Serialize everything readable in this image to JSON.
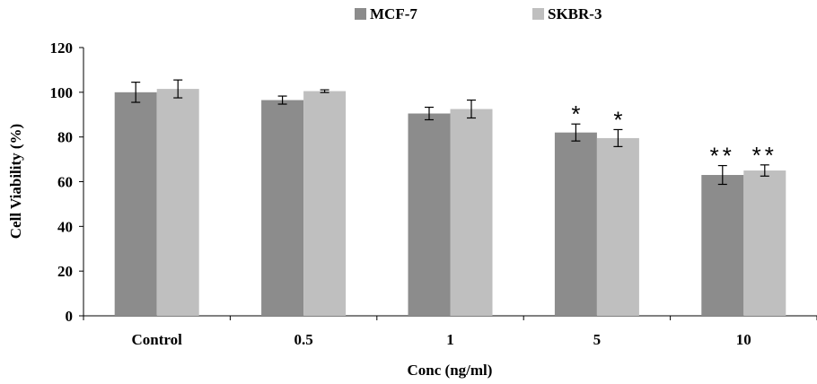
{
  "chart_data": {
    "type": "bar",
    "title": "",
    "xlabel": "Conc (ng/ml)",
    "ylabel": "Cell Viability (%)",
    "ylim": [
      0,
      120
    ],
    "yticks": [
      0,
      20,
      40,
      60,
      80,
      100,
      120
    ],
    "grid": false,
    "legend_position": "top-center",
    "categories": [
      "Control",
      "0.5",
      "1",
      "5",
      "10"
    ],
    "series": [
      {
        "name": "MCF-7",
        "color": "#8c8c8c",
        "values": [
          100,
          96.5,
          90.5,
          82,
          63
        ],
        "errors": [
          4.5,
          1.8,
          2.8,
          3.8,
          4.2
        ],
        "annotations": [
          "",
          "",
          "",
          "*",
          "**"
        ]
      },
      {
        "name": "SKBR-3",
        "color": "#bfbfbf",
        "values": [
          101.5,
          100.5,
          92.5,
          79.5,
          65
        ],
        "errors": [
          4,
          0.6,
          4,
          3.8,
          2.5
        ],
        "annotations": [
          "",
          "",
          "",
          "*",
          "**"
        ]
      }
    ]
  }
}
